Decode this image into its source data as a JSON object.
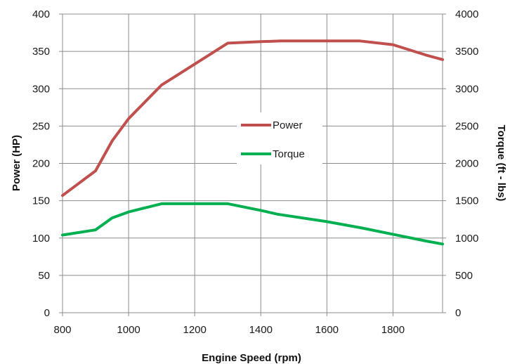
{
  "chart_data": {
    "type": "line",
    "title": "",
    "xlabel": "Engine Speed (rpm)",
    "ylabel_left": "Power (HP)",
    "ylabel_right": "Torque (ft - lbs)",
    "xlim": [
      800,
      1950
    ],
    "ylim_left": [
      0,
      400
    ],
    "ylim_right": [
      0,
      4000
    ],
    "x_ticks": [
      "800",
      "1000",
      "1200",
      "1400",
      "1600",
      "1800"
    ],
    "y_ticks_left": [
      "0",
      "50",
      "100",
      "150",
      "200",
      "250",
      "300",
      "350",
      "400"
    ],
    "y_ticks_right": [
      "0",
      "500",
      "1000",
      "1500",
      "2000",
      "2500",
      "3000",
      "3500",
      "4000"
    ],
    "grid": true,
    "legend_placement": "center",
    "series": [
      {
        "name": "Power",
        "axis": "left",
        "color": "#c0504d",
        "x": [
          800,
          900,
          950,
          1000,
          1100,
          1200,
          1300,
          1400,
          1460,
          1600,
          1700,
          1800,
          1900,
          1950
        ],
        "y": [
          157,
          190,
          230,
          260,
          305,
          333,
          361,
          363,
          364,
          364,
          364,
          359,
          345,
          339
        ]
      },
      {
        "name": "Torque",
        "axis": "right",
        "color": "#00b050",
        "x": [
          800,
          900,
          950,
          1000,
          1100,
          1200,
          1300,
          1400,
          1450,
          1600,
          1700,
          1800,
          1900,
          1950
        ],
        "y": [
          1040,
          1110,
          1270,
          1350,
          1460,
          1460,
          1460,
          1370,
          1320,
          1220,
          1140,
          1050,
          960,
          920
        ]
      }
    ]
  }
}
